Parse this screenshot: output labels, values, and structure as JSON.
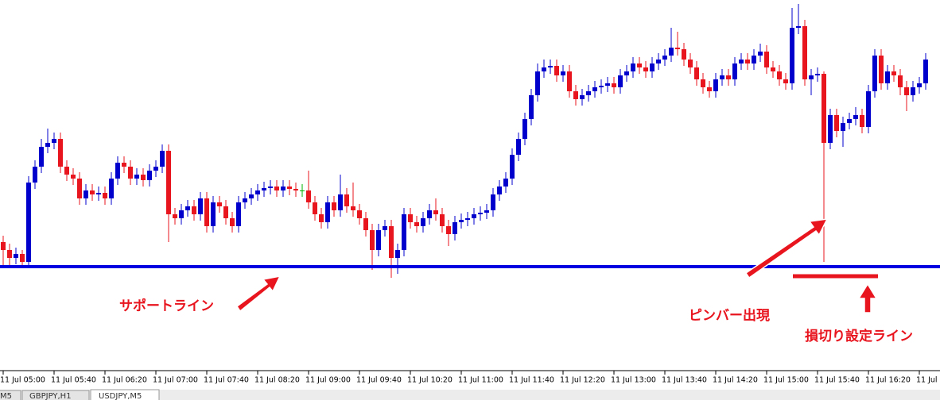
{
  "chart_data": {
    "type": "candlestick",
    "categories": [
      "11 Jul 05:00",
      null,
      null,
      null,
      null,
      null,
      null,
      null,
      "11 Jul 05:40",
      null,
      null,
      null,
      null,
      null,
      null,
      null,
      "11 Jul 06:20",
      null,
      null,
      null,
      null,
      null,
      null,
      null,
      "11 Jul 07:00",
      null,
      null,
      null,
      null,
      null,
      null,
      null,
      "11 Jul 07:40",
      null,
      null,
      null,
      null,
      null,
      null,
      null,
      "11 Jul 08:20",
      null,
      null,
      null,
      null,
      null,
      null,
      null,
      "11 Jul 09:00",
      null,
      null,
      null,
      null,
      null,
      null,
      null,
      "11 Jul 09:40",
      null,
      null,
      null,
      null,
      null,
      null,
      null,
      "11 Jul 10:20",
      null,
      null,
      null,
      null,
      null,
      null,
      null,
      "11 Jul 11:00",
      null,
      null,
      null,
      null,
      null,
      null,
      null,
      "11 Jul 11:40",
      null,
      null,
      null,
      null,
      null,
      null,
      null,
      "11 Jul 12:20",
      null,
      null,
      null,
      null,
      null,
      null,
      null,
      "11 Jul 13:00",
      null,
      null,
      null,
      null,
      null,
      null,
      null,
      "11 Jul 13:40",
      null,
      null,
      null,
      null,
      null,
      null,
      null,
      "11 Jul 14:20",
      null,
      null,
      null,
      null,
      null,
      null,
      null,
      "11 Jul 15:00",
      null,
      null,
      null,
      null,
      null,
      null,
      null,
      "11 Jul 15:40",
      null,
      null,
      null,
      null,
      null,
      null,
      null,
      "11 Jul 16:20",
      null,
      null,
      null,
      null,
      null,
      null,
      null,
      "11 Jul",
      null
    ],
    "open": [
      160,
      150,
      140,
      145,
      135,
      235,
      255,
      280,
      285,
      290,
      255,
      245,
      240,
      215,
      225,
      220,
      222,
      215,
      240,
      260,
      255,
      240,
      245,
      238,
      250,
      255,
      275,
      195,
      190,
      200,
      205,
      195,
      215,
      180,
      210,
      205,
      190,
      180,
      210,
      215,
      220,
      225,
      228,
      230,
      225,
      230,
      227,
      225,
      225,
      210,
      195,
      185,
      210,
      200,
      220,
      205,
      200,
      190,
      175,
      150,
      175,
      180,
      140,
      150,
      195,
      185,
      180,
      190,
      200,
      195,
      180,
      170,
      185,
      188,
      190,
      195,
      197,
      200,
      220,
      230,
      240,
      270,
      290,
      315,
      345,
      375,
      380,
      382,
      370,
      375,
      350,
      340,
      345,
      350,
      355,
      357,
      360,
      355,
      370,
      375,
      385,
      380,
      375,
      385,
      390,
      395,
      405,
      403,
      390,
      380,
      365,
      355,
      350,
      365,
      370,
      365,
      385,
      390,
      385,
      395,
      400,
      380,
      375,
      365,
      360,
      430,
      432,
      365,
      370,
      372,
      285,
      320,
      300,
      310,
      315,
      320,
      305,
      350,
      395,
      360,
      375,
      370,
      355,
      345,
      355,
      360
    ],
    "high": [
      168,
      158,
      153,
      150,
      243,
      263,
      290,
      303,
      298,
      298,
      263,
      253,
      248,
      233,
      233,
      230,
      230,
      248,
      268,
      268,
      263,
      253,
      253,
      258,
      263,
      283,
      283,
      203,
      208,
      213,
      213,
      223,
      223,
      218,
      218,
      213,
      198,
      218,
      223,
      228,
      233,
      236,
      238,
      238,
      238,
      238,
      235,
      233,
      250,
      218,
      203,
      218,
      218,
      245,
      228,
      235,
      208,
      198,
      183,
      183,
      188,
      188,
      158,
      203,
      203,
      193,
      198,
      208,
      215,
      203,
      188,
      193,
      196,
      198,
      203,
      205,
      208,
      228,
      238,
      248,
      278,
      298,
      323,
      353,
      385,
      390,
      390,
      390,
      383,
      383,
      358,
      353,
      358,
      363,
      365,
      368,
      368,
      378,
      383,
      393,
      393,
      388,
      393,
      398,
      403,
      430,
      425,
      411,
      398,
      388,
      373,
      363,
      373,
      378,
      378,
      393,
      398,
      398,
      403,
      410,
      408,
      388,
      383,
      373,
      455,
      460,
      440,
      378,
      380,
      375,
      328,
      328,
      318,
      323,
      330,
      328,
      358,
      403,
      403,
      383,
      383,
      378,
      363,
      363,
      368,
      398
    ],
    "low": [
      130,
      130,
      132,
      130,
      130,
      227,
      247,
      272,
      277,
      247,
      237,
      232,
      207,
      207,
      212,
      212,
      207,
      207,
      232,
      247,
      232,
      232,
      230,
      230,
      242,
      247,
      160,
      182,
      182,
      192,
      187,
      187,
      172,
      172,
      197,
      182,
      172,
      172,
      202,
      207,
      212,
      217,
      220,
      217,
      217,
      219,
      217,
      217,
      202,
      187,
      177,
      177,
      192,
      192,
      197,
      192,
      182,
      167,
      125,
      142,
      167,
      115,
      120,
      142,
      177,
      172,
      172,
      182,
      187,
      172,
      155,
      162,
      177,
      180,
      182,
      187,
      189,
      192,
      212,
      222,
      232,
      262,
      282,
      307,
      337,
      367,
      372,
      362,
      362,
      342,
      332,
      332,
      337,
      342,
      347,
      349,
      347,
      347,
      362,
      367,
      372,
      367,
      367,
      377,
      382,
      387,
      395,
      382,
      372,
      357,
      347,
      342,
      342,
      357,
      357,
      357,
      377,
      377,
      377,
      387,
      372,
      367,
      357,
      352,
      352,
      422,
      357,
      345,
      362,
      135,
      277,
      292,
      280,
      302,
      307,
      297,
      297,
      342,
      352,
      352,
      362,
      345,
      325,
      337,
      347,
      352
    ],
    "close": [
      150,
      140,
      145,
      135,
      235,
      255,
      280,
      285,
      290,
      255,
      245,
      240,
      215,
      225,
      220,
      222,
      215,
      240,
      260,
      255,
      240,
      245,
      238,
      250,
      255,
      275,
      195,
      190,
      200,
      205,
      195,
      215,
      180,
      210,
      205,
      190,
      180,
      210,
      215,
      220,
      225,
      228,
      230,
      225,
      230,
      227,
      225,
      225,
      210,
      195,
      185,
      210,
      200,
      220,
      205,
      200,
      190,
      175,
      150,
      175,
      180,
      140,
      150,
      195,
      185,
      180,
      190,
      200,
      195,
      180,
      170,
      185,
      188,
      190,
      195,
      197,
      200,
      220,
      230,
      240,
      270,
      290,
      315,
      345,
      375,
      380,
      382,
      370,
      375,
      350,
      340,
      345,
      350,
      355,
      357,
      360,
      355,
      370,
      375,
      385,
      380,
      375,
      385,
      390,
      395,
      405,
      403,
      390,
      380,
      365,
      355,
      350,
      365,
      370,
      365,
      385,
      390,
      385,
      395,
      400,
      380,
      375,
      365,
      360,
      430,
      432,
      365,
      370,
      372,
      285,
      320,
      300,
      310,
      315,
      320,
      305,
      350,
      395,
      360,
      375,
      370,
      355,
      345,
      355,
      360,
      390
    ],
    "up_color": "#0000cc",
    "down_color": "#e8141e",
    "doji_color": "#00b000",
    "ylim": [
      0,
      465
    ],
    "support_line": {
      "value": 129,
      "color": "#0000e0"
    },
    "stop_line": {
      "value": 117,
      "color": "#e8141e"
    },
    "annotations": [
      "サポートライン",
      "ピンバー出現",
      "損切り設定ライン"
    ]
  },
  "tabs": [
    "M5",
    "GBPJPY,H1",
    "USDJPY,M5"
  ]
}
